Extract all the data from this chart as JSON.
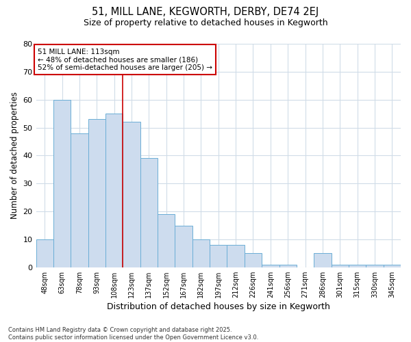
{
  "title1": "51, MILL LANE, KEGWORTH, DERBY, DE74 2EJ",
  "title2": "Size of property relative to detached houses in Kegworth",
  "xlabel": "Distribution of detached houses by size in Kegworth",
  "ylabel": "Number of detached properties",
  "categories": [
    "48sqm",
    "63sqm",
    "78sqm",
    "93sqm",
    "108sqm",
    "123sqm",
    "137sqm",
    "152sqm",
    "167sqm",
    "182sqm",
    "197sqm",
    "212sqm",
    "226sqm",
    "241sqm",
    "256sqm",
    "271sqm",
    "286sqm",
    "301sqm",
    "315sqm",
    "330sqm",
    "345sqm"
  ],
  "values": [
    10,
    60,
    48,
    53,
    55,
    52,
    39,
    19,
    15,
    10,
    8,
    8,
    5,
    1,
    1,
    0,
    5,
    1,
    1,
    1,
    1
  ],
  "bar_color": "#cddcee",
  "bar_edge_color": "#6baed6",
  "background_color": "#ffffff",
  "grid_color": "#d0dce8",
  "ylim": [
    0,
    80
  ],
  "yticks": [
    0,
    10,
    20,
    30,
    40,
    50,
    60,
    70,
    80
  ],
  "property_line_index": 4,
  "property_line_color": "#cc0000",
  "annotation_title": "51 MILL LANE: 113sqm",
  "annotation_line1": "← 48% of detached houses are smaller (186)",
  "annotation_line2": "52% of semi-detached houses are larger (205) →",
  "annotation_box_color": "#ffffff",
  "annotation_box_edge": "#cc0000",
  "footer1": "Contains HM Land Registry data © Crown copyright and database right 2025.",
  "footer2": "Contains public sector information licensed under the Open Government Licence v3.0."
}
